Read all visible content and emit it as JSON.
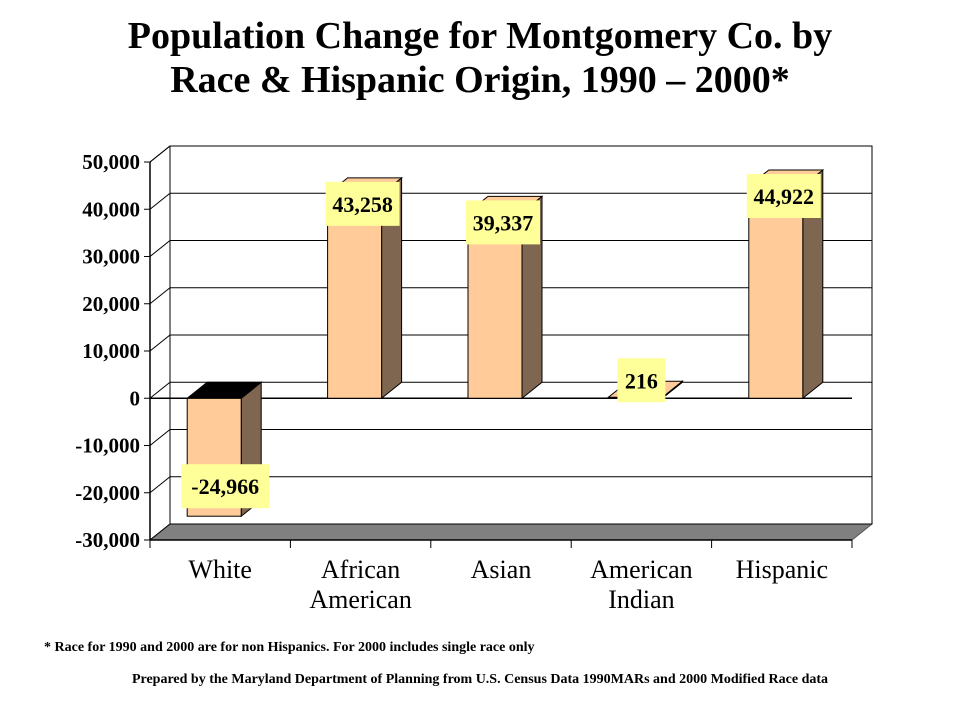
{
  "title_line1": "Population Change for Montgomery Co. by",
  "title_line2": "Race & Hispanic Origin, 1990 – 2000*",
  "footnote": "* Race for 1990 and 2000 are for non Hispanics. For 2000  includes single race only",
  "credit": "Prepared by the Maryland Department of Planning from U.S. Census Data 1990MARs and 2000 Modified Race data",
  "colors": {
    "bar_front": "#ffcc99",
    "bar_side": "#7f6650",
    "bar_top_positive": "#ffcc99",
    "bar_top_negative": "#000000",
    "label_bg": "#ffff99",
    "grid": "#000000",
    "floor": "#808080"
  },
  "chart_data": {
    "type": "bar",
    "categories": [
      [
        "White"
      ],
      [
        "African",
        "American"
      ],
      [
        "Asian"
      ],
      [
        "American",
        "Indian"
      ],
      [
        "Hispanic"
      ]
    ],
    "values": [
      -24966,
      43258,
      39337,
      216,
      44922
    ],
    "value_labels": [
      "-24,966",
      "43,258",
      "39,337",
      "216",
      "44,922"
    ],
    "yticks": [
      "50,000",
      "40,000",
      "30,000",
      "20,000",
      "10,000",
      "0",
      "-10,000",
      "-20,000",
      "-30,000"
    ],
    "ytick_values": [
      50000,
      40000,
      30000,
      20000,
      10000,
      0,
      -10000,
      -20000,
      -30000
    ],
    "ylim": [
      -30000,
      50000
    ],
    "grid": true,
    "three_d": true,
    "legend": "none"
  }
}
